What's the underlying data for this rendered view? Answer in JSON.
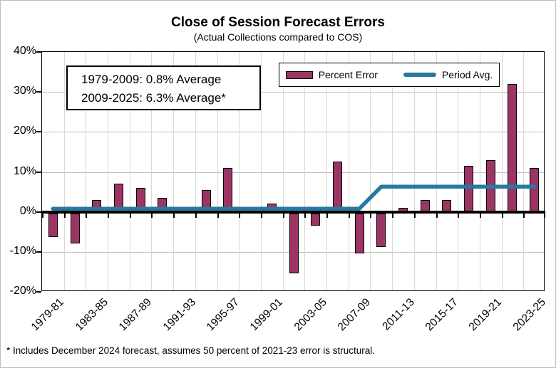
{
  "title": "Close of Session Forecast Errors",
  "subtitle": "(Actual Collections compared to COS)",
  "annotation": {
    "line1": "1979-2009:  0.8% Average",
    "line2": "2009-2025:  6.3% Average*"
  },
  "footnote": "* Includes December 2024 forecast, assumes 50 percent of 2021-23 error is structural.",
  "colors": {
    "bar_fill": "#9C3465",
    "bar_border": "#000000",
    "avg_line": "#2878A0",
    "grid_horizontal": "#bfbfbf",
    "grid_vertical": "#d9d9d9",
    "axis": "#000000"
  },
  "chart_data": {
    "type": "bar",
    "title": "Close of Session Forecast Errors",
    "subtitle": "(Actual Collections compared to COS)",
    "categories": [
      "1979-81",
      "1981-83",
      "1983-85",
      "1985-87",
      "1987-89",
      "1989-91",
      "1991-93",
      "1993-95",
      "1995-97",
      "1997-99",
      "1999-01",
      "2001-03",
      "2003-05",
      "2005-07",
      "2007-09",
      "2009-11",
      "2011-13",
      "2013-15",
      "2015-17",
      "2017-19",
      "2019-21",
      "2021-23",
      "2023-25"
    ],
    "series": [
      {
        "name": "Percent Error",
        "type": "bar",
        "values": [
          -6,
          -7.5,
          3,
          7,
          6,
          3.5,
          1,
          5.5,
          11,
          1,
          2,
          -15,
          -3,
          12.5,
          -10,
          -8.5,
          1,
          3,
          3,
          11.5,
          13,
          32,
          11
        ]
      },
      {
        "name": "Period Avg.",
        "type": "line",
        "values": [
          0.8,
          0.8,
          0.8,
          0.8,
          0.8,
          0.8,
          0.8,
          0.8,
          0.8,
          0.8,
          0.8,
          0.8,
          0.8,
          0.8,
          0.8,
          6.3,
          6.3,
          6.3,
          6.3,
          6.3,
          6.3,
          6.3,
          6.3
        ]
      }
    ],
    "y_ticks": [
      {
        "value": 40,
        "label": "40%"
      },
      {
        "value": 30,
        "label": "30%"
      },
      {
        "value": 20,
        "label": "20%"
      },
      {
        "value": 10,
        "label": "10%"
      },
      {
        "value": 0,
        "label": "0%"
      },
      {
        "value": -10,
        "label": "-10%"
      },
      {
        "value": -20,
        "label": "-20%"
      }
    ],
    "x_tick_indices": [
      0,
      2,
      4,
      6,
      8,
      10,
      12,
      14,
      16,
      18,
      20,
      22
    ],
    "ylim": [
      -20,
      40
    ],
    "grid": true,
    "legend_position": "top-right-inside",
    "annotations": [
      "1979-2009:  0.8% Average",
      "2009-2025:  6.3% Average*"
    ]
  }
}
